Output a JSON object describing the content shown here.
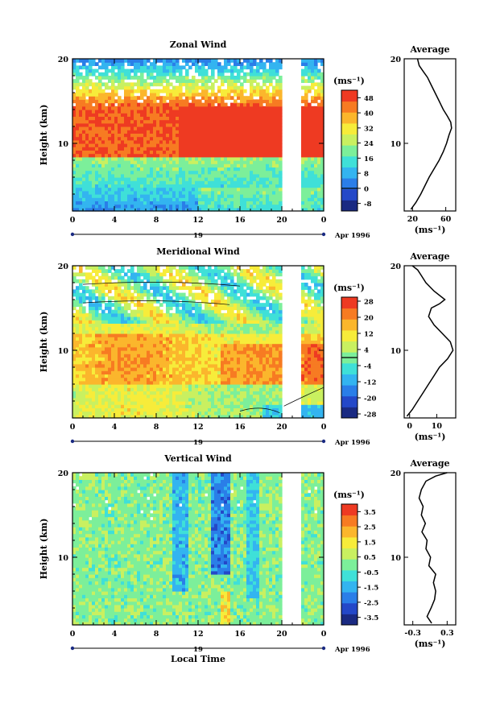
{
  "chart_data": [
    {
      "type": "heatmap",
      "title": "Zonal Wind",
      "ylabel": "Height (km)",
      "ylim": [
        2,
        20
      ],
      "xlim": [
        0,
        24
      ],
      "x_ticks": [
        "0",
        "4",
        "8",
        "12",
        "16",
        "20",
        "0"
      ],
      "y_ticks": [
        "10",
        "20"
      ],
      "date_day": "19",
      "date_label": "Apr 1996",
      "colorbar": {
        "unit": "(ms⁻¹)",
        "levels": [
          "-8",
          "0",
          "8",
          "16",
          "24",
          "32",
          "40",
          "48"
        ],
        "range": [
          -12,
          52
        ],
        "zero_line": 0
      },
      "data_gap": [
        20,
        21.8
      ],
      "contour_zero": false,
      "average_profile": {
        "title": "Average",
        "xlabel": "(ms⁻¹)",
        "x_ticks": [
          "20",
          "60"
        ],
        "x_tick_values": [
          20,
          60
        ],
        "xlim": [
          10,
          72
        ],
        "y_ticks": [
          "10",
          "20"
        ],
        "ylim": [
          2,
          20
        ],
        "points": [
          [
            18,
            2.2
          ],
          [
            24,
            3
          ],
          [
            30,
            4
          ],
          [
            35,
            5
          ],
          [
            40,
            6
          ],
          [
            46,
            7
          ],
          [
            52,
            8
          ],
          [
            57,
            9
          ],
          [
            61,
            10
          ],
          [
            64,
            11
          ],
          [
            67,
            11.8
          ],
          [
            66,
            12.5
          ],
          [
            62,
            13.2
          ],
          [
            57,
            14
          ],
          [
            52,
            15
          ],
          [
            47,
            16
          ],
          [
            42,
            17
          ],
          [
            38,
            17.8
          ],
          [
            33,
            18.5
          ],
          [
            28,
            19.2
          ],
          [
            26,
            20
          ]
        ]
      }
    },
    {
      "type": "heatmap",
      "title": "Meridional Wind",
      "ylabel": "Height (km)",
      "ylim": [
        2,
        20
      ],
      "xlim": [
        0,
        24
      ],
      "x_ticks": [
        "0",
        "4",
        "8",
        "12",
        "16",
        "20",
        "0"
      ],
      "y_ticks": [
        "10",
        "20"
      ],
      "date_day": "19",
      "date_label": "Apr 1996",
      "colorbar": {
        "unit": "(ms⁻¹)",
        "levels": [
          "-28",
          "-20",
          "-12",
          "-4",
          "4",
          "12",
          "20",
          "28"
        ],
        "range": [
          -30,
          30
        ],
        "zero_line": 0
      },
      "data_gap": [
        20,
        21.8
      ],
      "contour_zero": true,
      "average_profile": {
        "title": "Average",
        "xlabel": "(ms⁻¹)",
        "x_ticks": [
          "0",
          "10"
        ],
        "x_tick_values": [
          0,
          10
        ],
        "xlim": [
          -2,
          17
        ],
        "y_ticks": [
          "10",
          "20"
        ],
        "ylim": [
          2,
          20
        ],
        "points": [
          [
            -1,
            2.2
          ],
          [
            1,
            3
          ],
          [
            3,
            4
          ],
          [
            5,
            5
          ],
          [
            7,
            6
          ],
          [
            9,
            7
          ],
          [
            11,
            8
          ],
          [
            14,
            9
          ],
          [
            16,
            10
          ],
          [
            15,
            11
          ],
          [
            12,
            12
          ],
          [
            9,
            13
          ],
          [
            7,
            14
          ],
          [
            8,
            15
          ],
          [
            11,
            15.5
          ],
          [
            13,
            16
          ],
          [
            9,
            17
          ],
          [
            6,
            18
          ],
          [
            4,
            19
          ],
          [
            3,
            19.5
          ],
          [
            1,
            20
          ]
        ]
      }
    },
    {
      "type": "heatmap",
      "title": "Vertical Wind",
      "ylabel": "Height (km)",
      "xlabel": "Local Time",
      "ylim": [
        2,
        20
      ],
      "xlim": [
        0,
        24
      ],
      "x_ticks": [
        "0",
        "4",
        "8",
        "12",
        "16",
        "20",
        "0"
      ],
      "y_ticks": [
        "10",
        "20"
      ],
      "date_day": "19",
      "date_label": "Apr 1996",
      "colorbar": {
        "unit": "(ms⁻¹)",
        "levels": [
          "-3.5",
          "-2.5",
          "-1.5",
          "-0.5",
          "0.5",
          "1.5",
          "2.5",
          "3.5"
        ],
        "range": [
          -4,
          4
        ],
        "zero_line": null
      },
      "data_gap": [
        20,
        21.8
      ],
      "contour_zero": false,
      "average_profile": {
        "title": "Average",
        "xlabel": "(ms⁻¹)",
        "x_ticks": [
          "-0.3",
          "0.3"
        ],
        "x_tick_values": [
          -0.3,
          0.3
        ],
        "xlim": [
          -0.45,
          0.45
        ],
        "y_ticks": [
          "10",
          "20"
        ],
        "ylim": [
          2,
          20
        ],
        "points": [
          [
            0.03,
            2.2
          ],
          [
            -0.05,
            3
          ],
          [
            0.02,
            4
          ],
          [
            0.08,
            5
          ],
          [
            0.1,
            6
          ],
          [
            0.06,
            7
          ],
          [
            0.1,
            8
          ],
          [
            -0.02,
            9
          ],
          [
            0.01,
            10
          ],
          [
            -0.07,
            11
          ],
          [
            -0.05,
            12
          ],
          [
            -0.14,
            13
          ],
          [
            -0.08,
            14
          ],
          [
            -0.15,
            15
          ],
          [
            -0.12,
            16
          ],
          [
            -0.19,
            17
          ],
          [
            -0.15,
            18
          ],
          [
            -0.07,
            19
          ],
          [
            0.1,
            19.6
          ],
          [
            0.3,
            20
          ]
        ]
      }
    }
  ]
}
